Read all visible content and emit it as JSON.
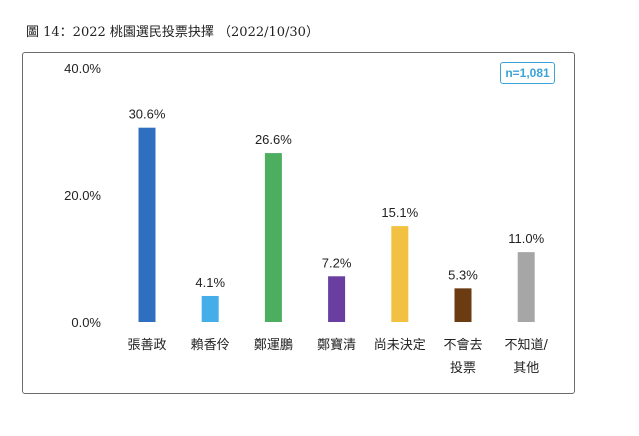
{
  "title": "圖 14：2022 桃園選民投票抉擇 （2022/10/30）",
  "sample_size": "n=1,081",
  "colors": {
    "張善政": "#2f6fbf",
    "賴香伶": "#45aee8",
    "鄭運鵬": "#4cae5e",
    "鄭寶清": "#6a3ea1",
    "尚未決定": "#f2c142",
    "不會去投票": "#6b3b12",
    "不知道/其他": "#a6a6a6"
  },
  "chart_data": {
    "type": "bar",
    "categories": [
      "張善政",
      "賴香伶",
      "鄭運鵬",
      "鄭寶清",
      "尚未決定",
      "不會去投票",
      "不知道/其他"
    ],
    "category_lines": [
      [
        "張善政"
      ],
      [
        "賴香伶"
      ],
      [
        "鄭運鵬"
      ],
      [
        "鄭寶清"
      ],
      [
        "尚未決定"
      ],
      [
        "不會去",
        "投票"
      ],
      [
        "不知道/",
        "其他"
      ]
    ],
    "values": [
      30.6,
      4.1,
      26.6,
      7.2,
      15.1,
      5.3,
      11.0
    ],
    "value_labels": [
      "30.6%",
      "4.1%",
      "26.6%",
      "7.2%",
      "15.1%",
      "5.3%",
      "11.0%"
    ],
    "ylim": [
      0,
      40
    ],
    "yticks": [
      0,
      20,
      40
    ],
    "ytick_labels": [
      "0.0%",
      "20.0%",
      "40.0%"
    ],
    "grid": false,
    "legend": "none"
  }
}
